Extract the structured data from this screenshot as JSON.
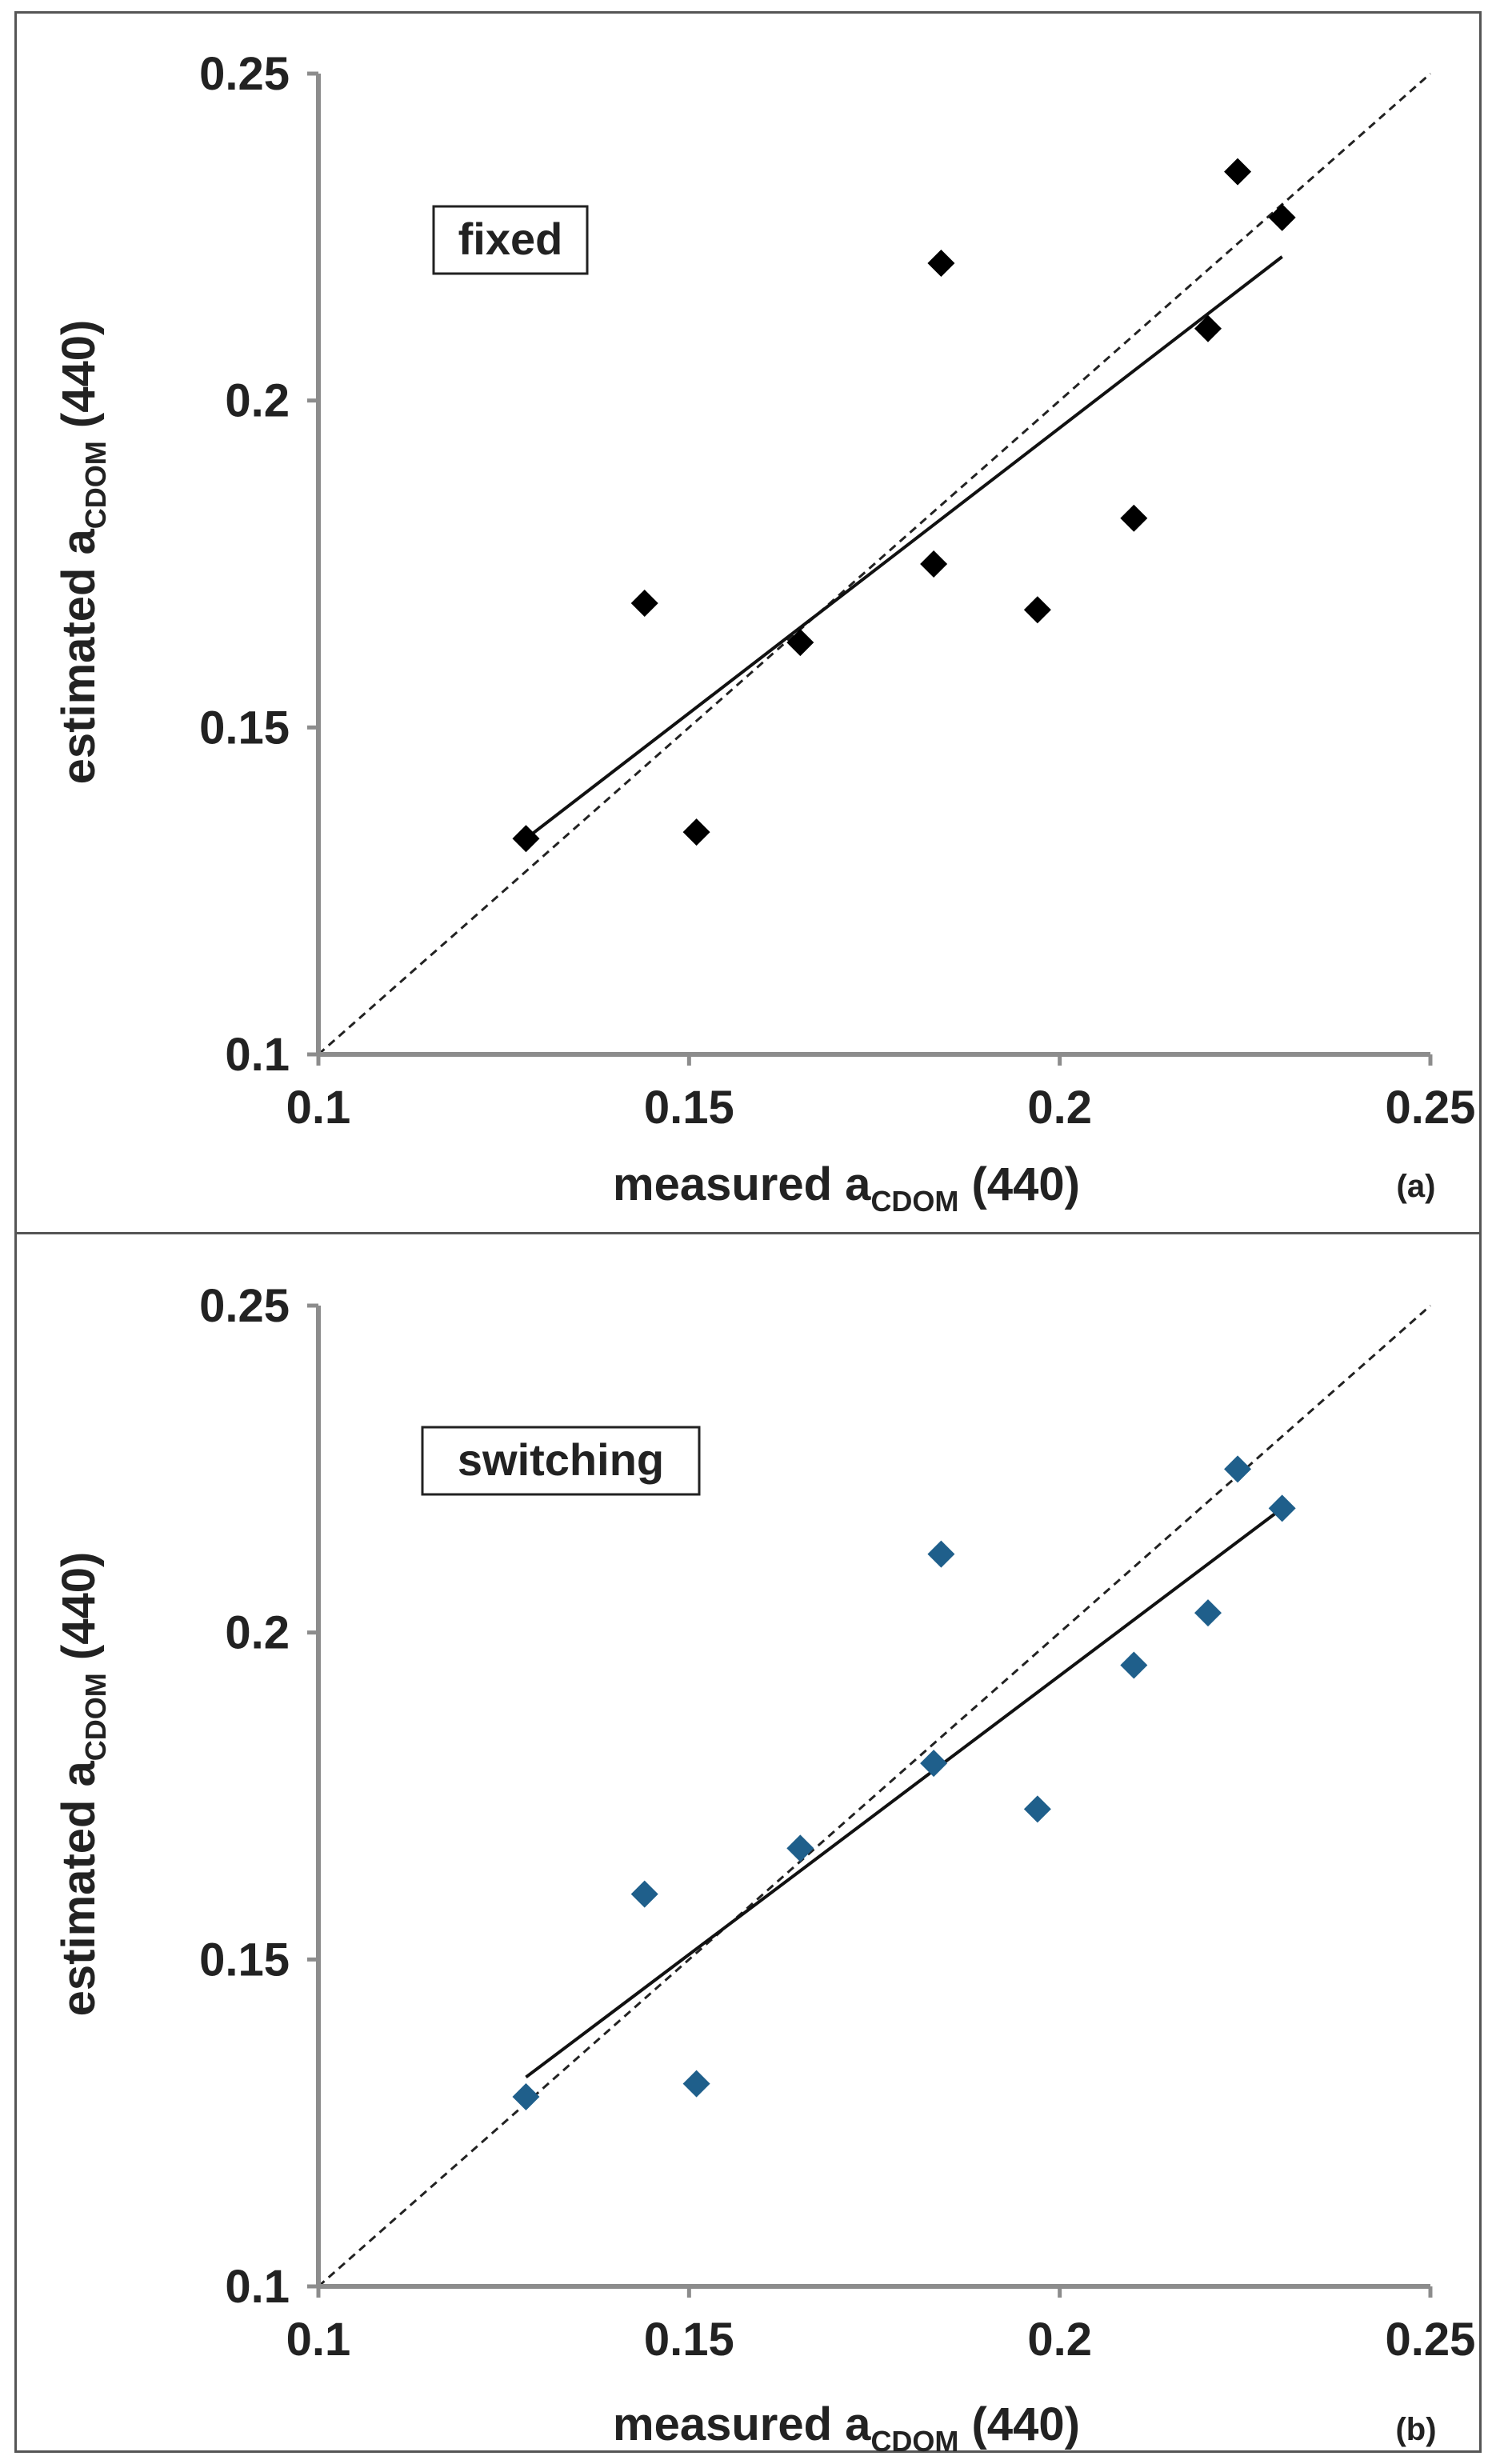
{
  "chart_data": [
    {
      "type": "scatter",
      "panel": "(a)",
      "annotation": "fixed",
      "xlabel": {
        "main": "measured a",
        "sub": "CDOM",
        "suffix": " (440)"
      },
      "ylabel": {
        "main": "estimated a",
        "sub": "CDOM",
        "suffix": " (440)"
      },
      "xlim": [
        0.1,
        0.25
      ],
      "ylim": [
        0.1,
        0.25
      ],
      "xticks": [
        "0.1",
        "0.15",
        "0.2",
        "0.25"
      ],
      "yticks": [
        "0.1",
        "0.15",
        "0.2",
        "0.25"
      ],
      "marker_color": "#000000",
      "points": [
        {
          "x": 0.128,
          "y": 0.133
        },
        {
          "x": 0.144,
          "y": 0.169
        },
        {
          "x": 0.151,
          "y": 0.134
        },
        {
          "x": 0.165,
          "y": 0.163
        },
        {
          "x": 0.183,
          "y": 0.175
        },
        {
          "x": 0.184,
          "y": 0.221
        },
        {
          "x": 0.197,
          "y": 0.168
        },
        {
          "x": 0.21,
          "y": 0.182
        },
        {
          "x": 0.22,
          "y": 0.211
        },
        {
          "x": 0.224,
          "y": 0.235
        },
        {
          "x": 0.23,
          "y": 0.228
        }
      ],
      "fit_line": {
        "x": [
          0.128,
          0.23
        ],
        "y": [
          0.133,
          0.222
        ]
      },
      "identity_line": {
        "x": [
          0.1,
          0.25
        ],
        "y": [
          0.1,
          0.25
        ]
      }
    },
    {
      "type": "scatter",
      "panel": "(b)",
      "annotation": "switching",
      "xlabel": {
        "main": "measured a",
        "sub": "CDOM",
        "suffix": " (440)"
      },
      "ylabel": {
        "main": "estimated a",
        "sub": "CDOM",
        "suffix": " (440)"
      },
      "xlim": [
        0.1,
        0.25
      ],
      "ylim": [
        0.1,
        0.25
      ],
      "xticks": [
        "0.1",
        "0.15",
        "0.2",
        "0.25"
      ],
      "yticks": [
        "0.1",
        "0.15",
        "0.2",
        "0.25"
      ],
      "marker_color": "#1f5f8b",
      "points": [
        {
          "x": 0.128,
          "y": 0.129
        },
        {
          "x": 0.144,
          "y": 0.16
        },
        {
          "x": 0.151,
          "y": 0.131
        },
        {
          "x": 0.165,
          "y": 0.167
        },
        {
          "x": 0.183,
          "y": 0.18
        },
        {
          "x": 0.184,
          "y": 0.212
        },
        {
          "x": 0.197,
          "y": 0.173
        },
        {
          "x": 0.21,
          "y": 0.195
        },
        {
          "x": 0.22,
          "y": 0.203
        },
        {
          "x": 0.224,
          "y": 0.225
        },
        {
          "x": 0.23,
          "y": 0.219
        }
      ],
      "fit_line": {
        "x": [
          0.128,
          0.23
        ],
        "y": [
          0.132,
          0.219
        ]
      },
      "identity_line": {
        "x": [
          0.1,
          0.25
        ],
        "y": [
          0.1,
          0.25
        ]
      }
    }
  ]
}
